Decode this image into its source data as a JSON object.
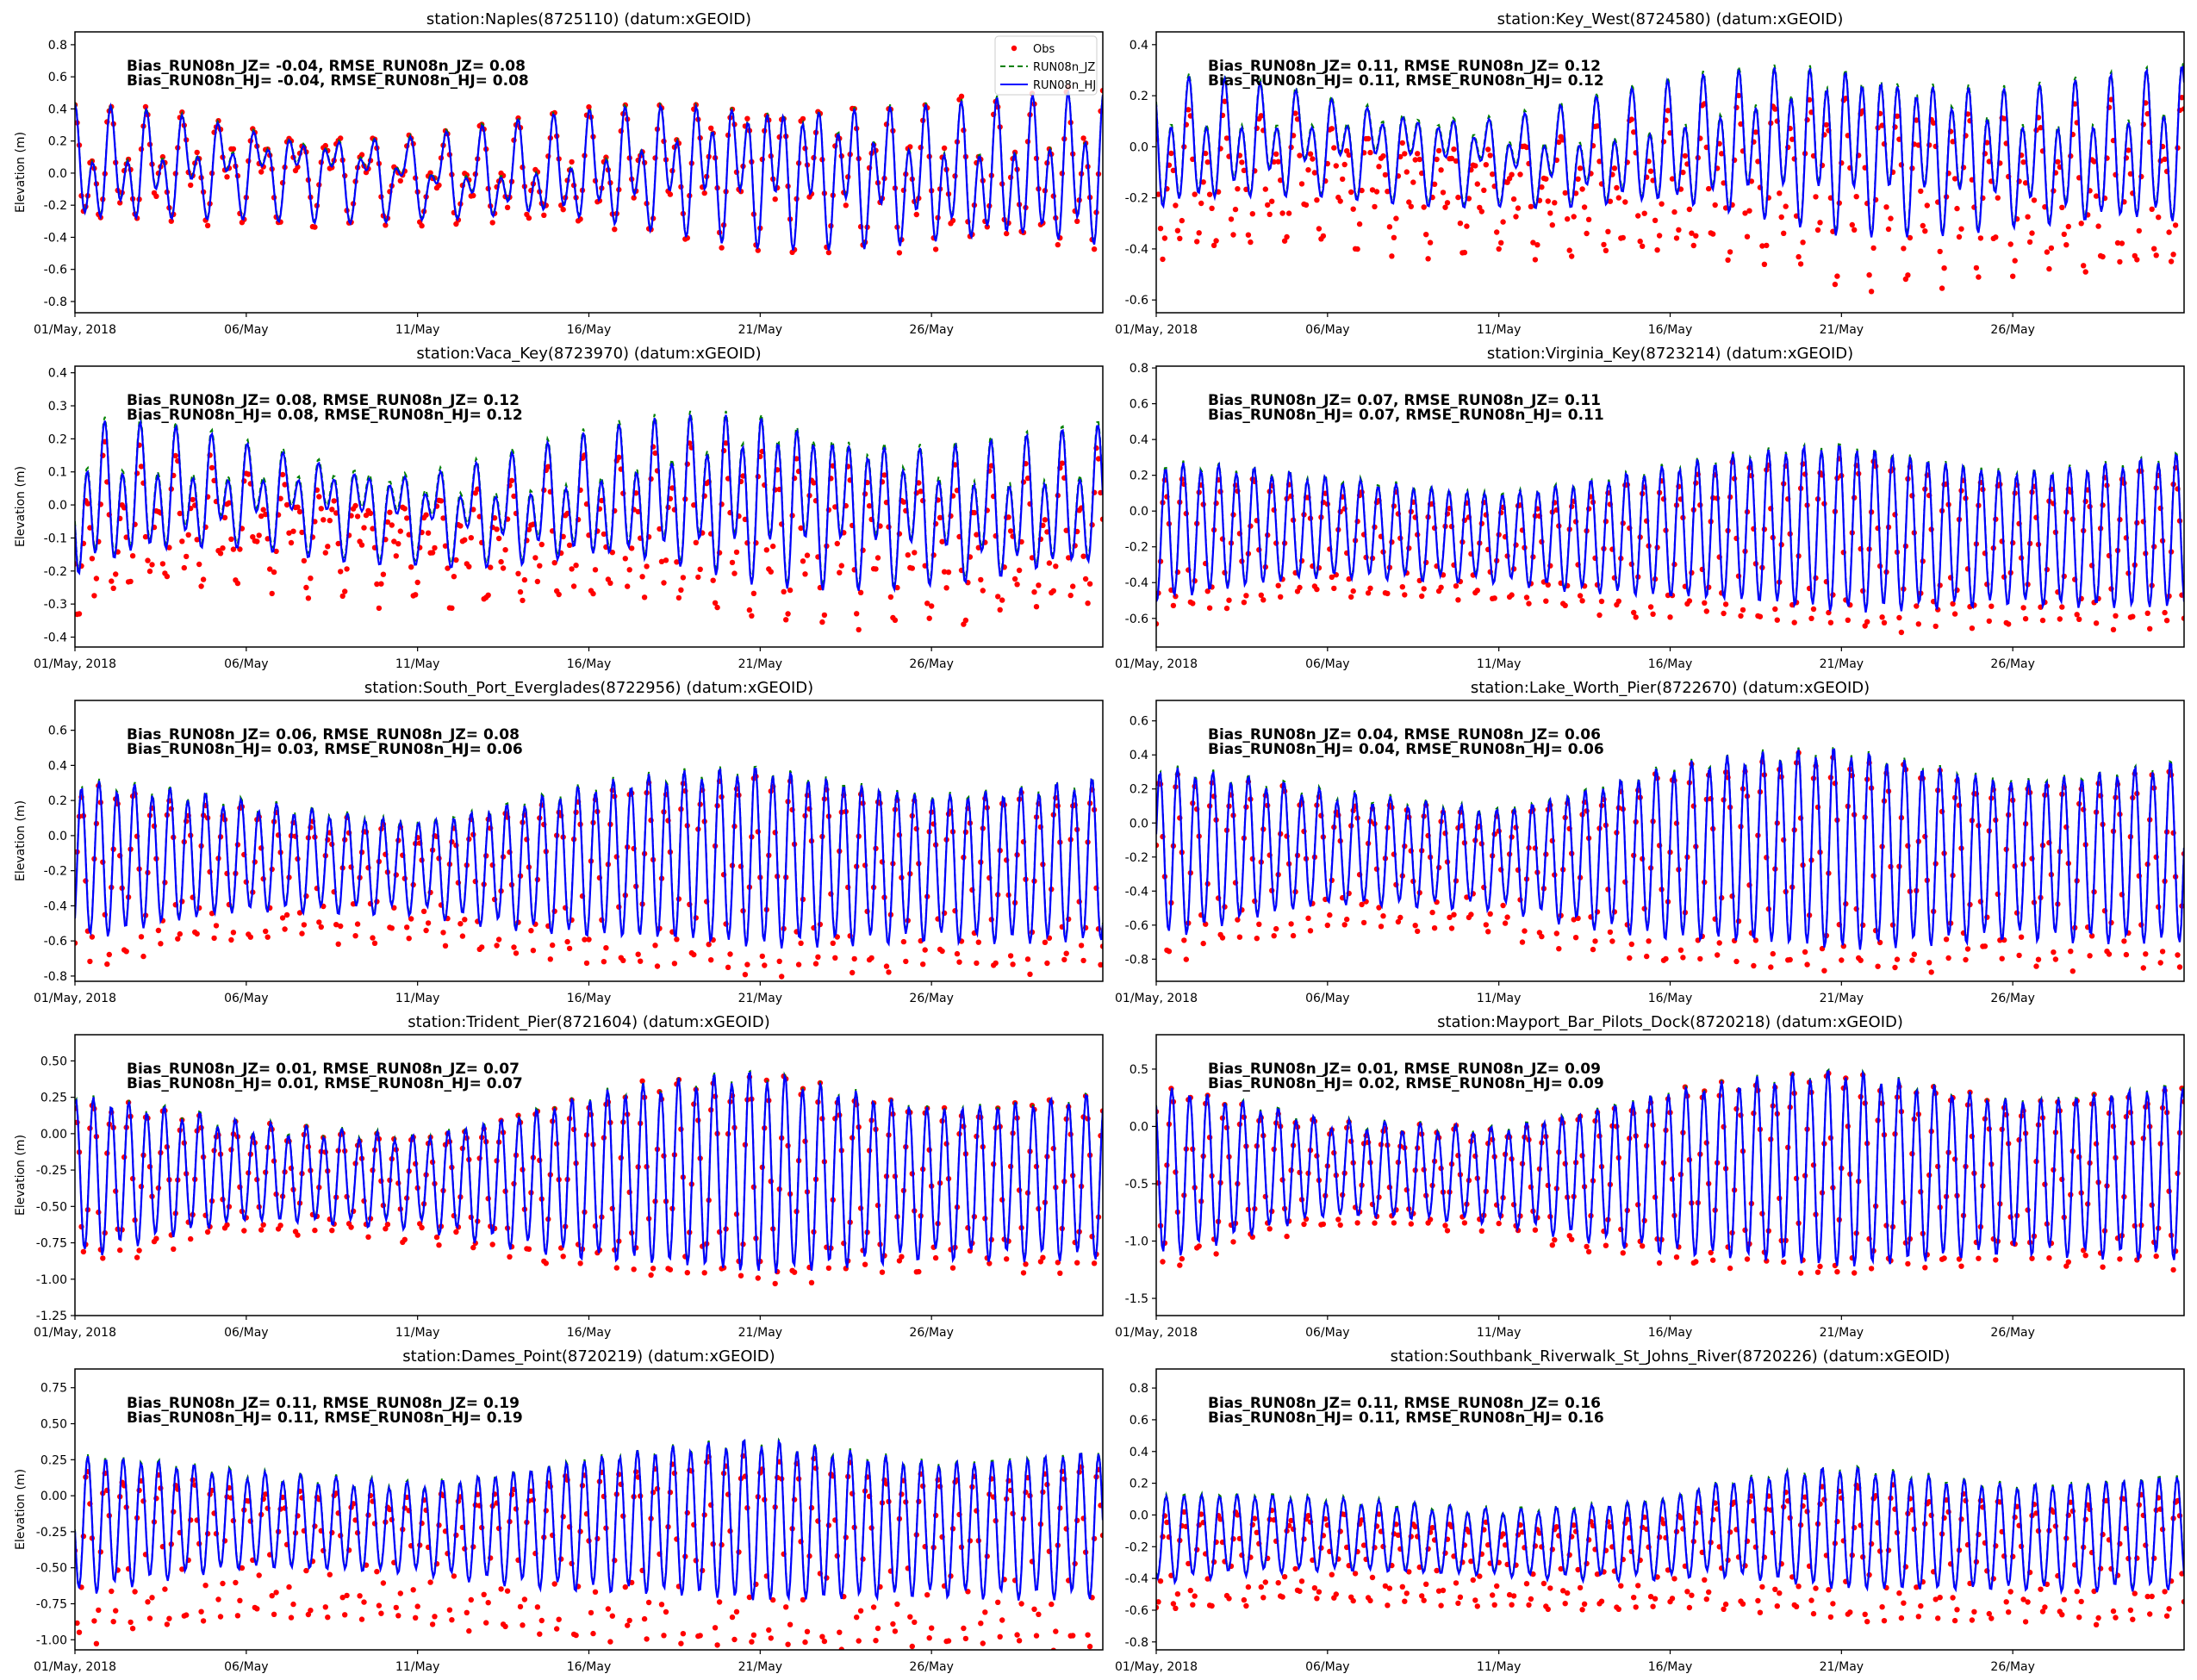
{
  "figure": {
    "legend": {
      "entries": [
        {
          "label": "Obs",
          "style": "red dots"
        },
        {
          "label": "RUN08n_JZ",
          "style": "green dashed"
        },
        {
          "label": "RUN08n_HJ",
          "style": "blue solid"
        }
      ],
      "placement": "top-right of first panel"
    },
    "colors": {
      "obs": "#ff0000",
      "jz": "#008000",
      "hj": "#0000ff"
    }
  },
  "chart_data": [
    {
      "type": "line",
      "title": "station:Naples(8725110) (datum:xGEOID)",
      "ylabel": "Elevation (m)",
      "xlabel": "",
      "x_range": [
        "2018-05-01",
        "2018-05-31"
      ],
      "x_ticks": [
        "01/May, 2018",
        "06/May",
        "11/May",
        "16/May",
        "21/May",
        "26/May"
      ],
      "ylim": [
        -0.87,
        0.88
      ],
      "y_ticks": [
        "0.8",
        "0.6",
        "0.4",
        "0.2",
        "0.0",
        "-0.2",
        "-0.4",
        "-0.6",
        "-0.8"
      ],
      "y_tick_values": [
        0.8,
        0.6,
        0.4,
        0.2,
        0.0,
        -0.2,
        -0.4,
        -0.6,
        -0.8
      ],
      "stats": [
        "Bias_RUN08n_JZ= -0.04, RMSE_RUN08n_JZ=  0.08",
        "Bias_RUN08n_HJ= -0.04, RMSE_RUN08n_HJ=  0.08"
      ],
      "model": {
        "mean": 0.0,
        "semidiurnal_amp": [
          0.25,
          0.15,
          0.12,
          0.22,
          0.32,
          0.3,
          0.35
        ],
        "diurnal_amp": 0.18,
        "obs_offset": 0.02,
        "obs_extra_low": 0.05
      },
      "series": [
        {
          "name": "Obs",
          "marker": "dot"
        },
        {
          "name": "RUN08n_JZ",
          "line": "dashed"
        },
        {
          "name": "RUN08n_HJ",
          "line": "solid"
        }
      ],
      "show_ylabel": true,
      "legend": true
    },
    {
      "type": "line",
      "title": "station:Key_West(8724580) (datum:xGEOID)",
      "ylabel": "",
      "x_range": [
        "2018-05-01",
        "2018-05-31"
      ],
      "x_ticks": [
        "01/May, 2018",
        "06/May",
        "11/May",
        "16/May",
        "21/May",
        "26/May"
      ],
      "ylim": [
        -0.65,
        0.45
      ],
      "y_ticks": [
        "0.4",
        "0.2",
        "0.0",
        "-0.2",
        "-0.4",
        "-0.6"
      ],
      "y_tick_values": [
        0.4,
        0.2,
        0.0,
        -0.2,
        -0.4,
        -0.6
      ],
      "stats": [
        "Bias_RUN08n_JZ=  0.11, RMSE_RUN08n_JZ=  0.12",
        "Bias_RUN08n_HJ=  0.11, RMSE_RUN08n_HJ=  0.12"
      ],
      "model": {
        "mean": -0.02,
        "semidiurnal_amp": [
          0.2,
          0.12,
          0.1,
          0.18,
          0.26,
          0.2,
          0.24
        ],
        "diurnal_amp": 0.1,
        "obs_offset": -0.11,
        "obs_extra_low": 0.08
      },
      "show_ylabel": false,
      "legend": false
    },
    {
      "type": "line",
      "title": "station:Vaca_Key(8723970) (datum:xGEOID)",
      "ylabel": "Elevation (m)",
      "x_range": [
        "2018-05-01",
        "2018-05-31"
      ],
      "x_ticks": [
        "01/May, 2018",
        "06/May",
        "11/May",
        "16/May",
        "21/May",
        "26/May"
      ],
      "ylim": [
        -0.43,
        0.42
      ],
      "y_ticks": [
        "0.4",
        "0.3",
        "0.2",
        "0.1",
        "0.0",
        "-0.1",
        "-0.2",
        "-0.3",
        "-0.4"
      ],
      "y_tick_values": [
        0.4,
        0.3,
        0.2,
        0.1,
        0.0,
        -0.1,
        -0.2,
        -0.3,
        -0.4
      ],
      "stats": [
        "Bias_RUN08n_JZ=  0.08, RMSE_RUN08n_JZ=  0.12",
        "Bias_RUN08n_HJ=  0.08, RMSE_RUN08n_HJ=  0.12"
      ],
      "model": {
        "mean": 0.0,
        "semidiurnal_amp": [
          0.18,
          0.1,
          0.08,
          0.14,
          0.2,
          0.15,
          0.16
        ],
        "diurnal_amp": 0.08,
        "obs_offset": -0.08,
        "obs_extra_low": 0.03
      },
      "show_ylabel": true,
      "legend": false
    },
    {
      "type": "line",
      "title": "station:Virginia_Key(8723214) (datum:xGEOID)",
      "ylabel": "",
      "x_range": [
        "2018-05-01",
        "2018-05-31"
      ],
      "x_ticks": [
        "01/May, 2018",
        "06/May",
        "11/May",
        "16/May",
        "21/May",
        "26/May"
      ],
      "ylim": [
        -0.76,
        0.81
      ],
      "y_ticks": [
        "0.8",
        "0.6",
        "0.4",
        "0.2",
        "0.0",
        "-0.2",
        "-0.4",
        "-0.6"
      ],
      "y_tick_values": [
        0.8,
        0.6,
        0.4,
        0.2,
        0.0,
        -0.2,
        -0.4,
        -0.6
      ],
      "stats": [
        "Bias_RUN08n_JZ=  0.07, RMSE_RUN08n_JZ=  0.11",
        "Bias_RUN08n_HJ=  0.07, RMSE_RUN08n_HJ=  0.11"
      ],
      "model": {
        "mean": -0.12,
        "semidiurnal_amp": [
          0.38,
          0.27,
          0.24,
          0.36,
          0.46,
          0.36,
          0.42
        ],
        "diurnal_amp": 0.02,
        "obs_offset": -0.07,
        "obs_extra_low": 0.03
      },
      "show_ylabel": false,
      "legend": false
    },
    {
      "type": "line",
      "title": "station:South_Port_Everglades(8722956) (datum:xGEOID)",
      "ylabel": "Elevation (m)",
      "x_range": [
        "2018-05-01",
        "2018-05-31"
      ],
      "x_ticks": [
        "01/May, 2018",
        "06/May",
        "11/May",
        "16/May",
        "21/May",
        "26/May"
      ],
      "ylim": [
        -0.83,
        0.77
      ],
      "y_ticks": [
        "0.6",
        "0.4",
        "0.2",
        "0.0",
        "-0.2",
        "-0.4",
        "-0.6",
        "-0.8"
      ],
      "y_tick_values": [
        0.6,
        0.4,
        0.2,
        0.0,
        -0.2,
        -0.4,
        -0.6,
        -0.8
      ],
      "stats": [
        "Bias_RUN08n_JZ=  0.06, RMSE_RUN08n_JZ=  0.08",
        "Bias_RUN08n_HJ=  0.03, RMSE_RUN08n_HJ=  0.06"
      ],
      "model": {
        "mean": -0.15,
        "semidiurnal_amp": [
          0.45,
          0.3,
          0.25,
          0.42,
          0.5,
          0.4,
          0.45
        ],
        "diurnal_amp": 0.03,
        "obs_offset": -0.05,
        "obs_extra_low": 0.1
      },
      "show_ylabel": true,
      "legend": false
    },
    {
      "type": "line",
      "title": "station:Lake_Worth_Pier(8722670) (datum:xGEOID)",
      "ylabel": "",
      "x_range": [
        "2018-05-01",
        "2018-05-31"
      ],
      "x_ticks": [
        "01/May, 2018",
        "06/May",
        "11/May",
        "16/May",
        "21/May",
        "26/May"
      ],
      "ylim": [
        -0.93,
        0.72
      ],
      "y_ticks": [
        "0.6",
        "0.4",
        "0.2",
        "0.0",
        "-0.2",
        "-0.4",
        "-0.6",
        "-0.8"
      ],
      "y_tick_values": [
        0.6,
        0.4,
        0.2,
        0.0,
        -0.2,
        -0.4,
        -0.6,
        -0.8
      ],
      "stats": [
        "Bias_RUN08n_JZ=  0.04, RMSE_RUN08n_JZ=  0.06",
        "Bias_RUN08n_HJ=  0.04, RMSE_RUN08n_HJ=  0.06"
      ],
      "model": {
        "mean": -0.18,
        "semidiurnal_amp": [
          0.5,
          0.32,
          0.28,
          0.5,
          0.58,
          0.45,
          0.52
        ],
        "diurnal_amp": 0.03,
        "obs_offset": -0.04,
        "obs_extra_low": 0.1
      },
      "show_ylabel": false,
      "legend": false
    },
    {
      "type": "line",
      "title": "station:Trident_Pier(8721604) (datum:xGEOID)",
      "ylabel": "Elevation (m)",
      "x_range": [
        "2018-05-01",
        "2018-05-31"
      ],
      "x_ticks": [
        "01/May, 2018",
        "06/May",
        "11/May",
        "16/May",
        "21/May",
        "26/May"
      ],
      "ylim": [
        -1.25,
        0.68
      ],
      "y_ticks": [
        "0.50",
        "0.25",
        "0.00",
        "-0.25",
        "-0.50",
        "-0.75",
        "-1.00",
        "-1.25"
      ],
      "y_tick_values": [
        0.5,
        0.25,
        0.0,
        -0.25,
        -0.5,
        -0.75,
        -1.0,
        -1.25
      ],
      "stats": [
        "Bias_RUN08n_JZ=  0.01, RMSE_RUN08n_JZ=  0.07",
        "Bias_RUN08n_HJ=  0.01, RMSE_RUN08n_HJ=  0.07"
      ],
      "model": {
        "mean": -0.3,
        "semidiurnal_amp": [
          0.55,
          0.32,
          0.3,
          0.55,
          0.68,
          0.5,
          0.55
        ],
        "diurnal_amp": 0.04,
        "obs_offset": -0.01,
        "obs_extra_low": 0.06
      },
      "show_ylabel": true,
      "legend": false
    },
    {
      "type": "line",
      "title": "station:Mayport_Bar_Pilots_Dock(8720218) (datum:xGEOID)",
      "ylabel": "",
      "x_range": [
        "2018-05-01",
        "2018-05-31"
      ],
      "x_ticks": [
        "01/May, 2018",
        "06/May",
        "11/May",
        "16/May",
        "21/May",
        "26/May"
      ],
      "ylim": [
        -1.65,
        0.8
      ],
      "y_ticks": [
        "0.5",
        "0.0",
        "-0.5",
        "-1.0",
        "-1.5"
      ],
      "y_tick_values": [
        0.5,
        0.0,
        -0.5,
        -1.0,
        -1.5
      ],
      "stats": [
        "Bias_RUN08n_JZ=  0.01, RMSE_RUN08n_JZ=  0.09",
        "Bias_RUN08n_HJ=  0.02, RMSE_RUN08n_HJ=  0.09"
      ],
      "model": {
        "mean": -0.4,
        "semidiurnal_amp": [
          0.75,
          0.4,
          0.4,
          0.7,
          0.85,
          0.65,
          0.75
        ],
        "diurnal_amp": 0.04,
        "obs_offset": -0.02,
        "obs_extra_low": 0.05
      },
      "show_ylabel": false,
      "legend": false
    },
    {
      "type": "line",
      "title": "station:Dames_Point(8720219) (datum:xGEOID)",
      "ylabel": "Elevation (m)",
      "x_range": [
        "2018-05-01",
        "2018-05-31"
      ],
      "x_ticks": [
        "01/May, 2018",
        "06/May",
        "11/May",
        "16/May",
        "21/May",
        "26/May"
      ],
      "ylim": [
        -1.07,
        0.88
      ],
      "y_ticks": [
        "0.75",
        "0.50",
        "0.25",
        "0.00",
        "-0.25",
        "-0.50",
        "-0.75",
        "-1.00"
      ],
      "y_tick_values": [
        0.75,
        0.5,
        0.25,
        0.0,
        -0.25,
        -0.5,
        -0.75,
        -1.0
      ],
      "stats": [
        "Bias_RUN08n_JZ=  0.11, RMSE_RUN08n_JZ=  0.19",
        "Bias_RUN08n_HJ=  0.11, RMSE_RUN08n_HJ=  0.19"
      ],
      "model": {
        "mean": -0.2,
        "semidiurnal_amp": [
          0.48,
          0.32,
          0.3,
          0.45,
          0.55,
          0.45,
          0.5
        ],
        "diurnal_amp": 0.03,
        "obs_offset": -0.11,
        "obs_extra_low": 0.22
      },
      "show_ylabel": true,
      "legend": false
    },
    {
      "type": "line",
      "title": "station:Southbank_Riverwalk_St_Johns_River(8720226) (datum:xGEOID)",
      "ylabel": "",
      "x_range": [
        "2018-05-01",
        "2018-05-31"
      ],
      "x_ticks": [
        "01/May, 2018",
        "06/May",
        "11/May",
        "16/May",
        "21/May",
        "26/May"
      ],
      "ylim": [
        -0.85,
        0.92
      ],
      "y_ticks": [
        "0.8",
        "0.6",
        "0.4",
        "0.2",
        "0.0",
        "-0.2",
        "-0.4",
        "-0.6",
        "-0.8"
      ],
      "y_tick_values": [
        0.8,
        0.6,
        0.4,
        0.2,
        0.0,
        -0.2,
        -0.4,
        -0.6,
        -0.8
      ],
      "stats": [
        "Bias_RUN08n_JZ=  0.11, RMSE_RUN08n_JZ=  0.16",
        "Bias_RUN08n_HJ=  0.11, RMSE_RUN08n_HJ=  0.16"
      ],
      "model": {
        "mean": -0.15,
        "semidiurnal_amp": [
          0.27,
          0.22,
          0.2,
          0.25,
          0.38,
          0.32,
          0.35
        ],
        "diurnal_amp": 0.02,
        "obs_offset": -0.11,
        "obs_extra_low": 0.08,
        "mean_shift_after_day": [
          15,
          0.04
        ]
      },
      "show_ylabel": false,
      "legend": false
    }
  ]
}
